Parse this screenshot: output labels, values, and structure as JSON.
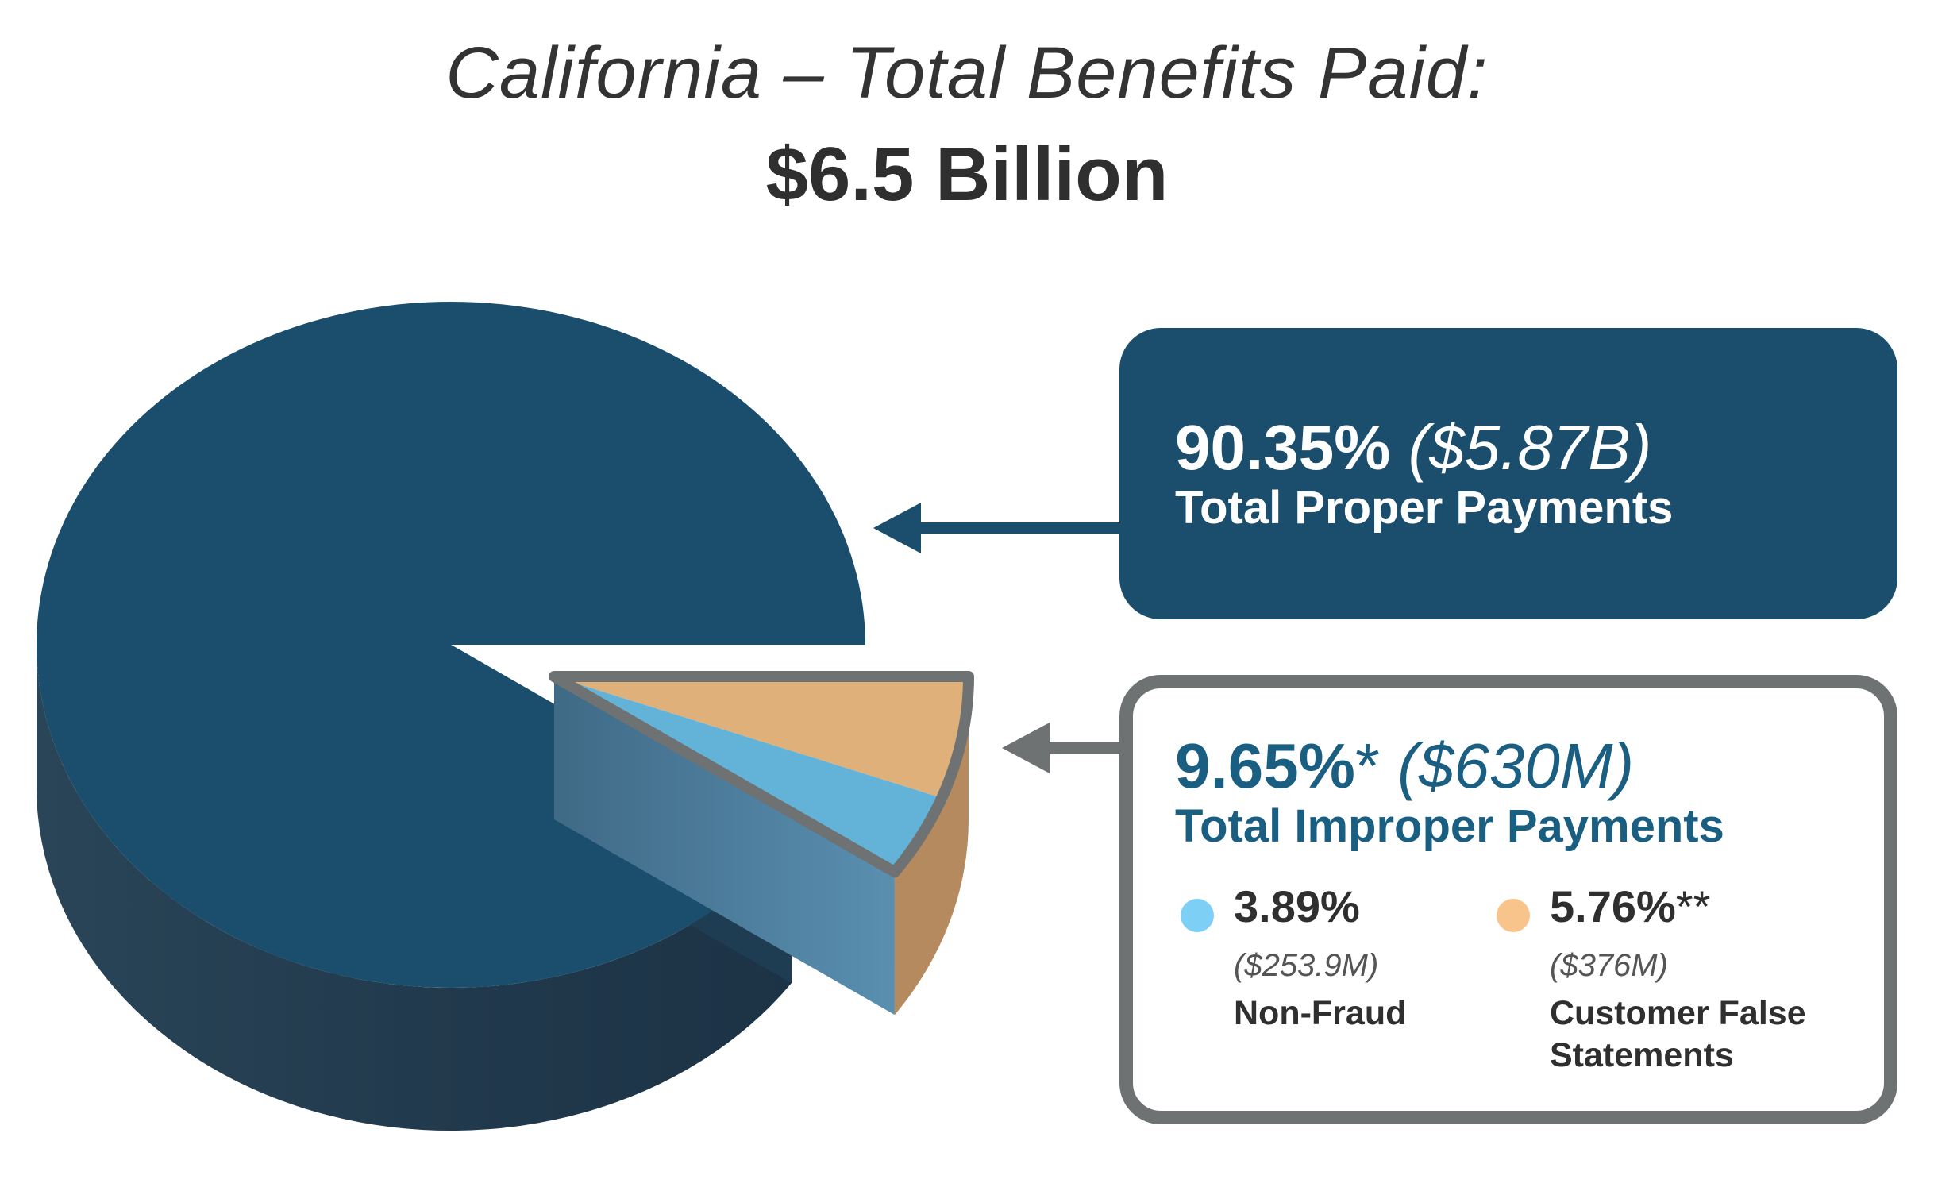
{
  "title": "California – Total Benefits Paid:",
  "subtitle": "$6.5 Billion",
  "colors": {
    "proper": "#1a4e6c",
    "non_fraud": "#63b3d9",
    "false_statements": "#dfb07a",
    "improper_border": "#6f7273",
    "non_fraud_dot": "#7dcff5",
    "false_statements_dot": "#f8c48c"
  },
  "proper": {
    "pct": "90.35%",
    "amount": "($5.87B)",
    "label": "Total Proper Payments"
  },
  "improper": {
    "pct": "9.65%",
    "star": "*",
    "amount": "($630M)",
    "label": "Total Improper Payments",
    "items": [
      {
        "pct": "3.89%",
        "star": "",
        "amount": "($253.9M)",
        "label_lines": [
          "Non-Fraud"
        ]
      },
      {
        "pct": "5.76%",
        "star": "**",
        "amount": "($376M)",
        "label_lines": [
          "Customer False",
          "Statements"
        ]
      }
    ]
  },
  "chart_data": {
    "type": "pie",
    "title": "California – Total Benefits Paid:",
    "subtitle": "$6.5 Billion",
    "slices": [
      {
        "label": "Total Proper Payments",
        "percent": 90.35,
        "amount": "$5.87B"
      },
      {
        "label": "Non-Fraud",
        "percent": 3.89,
        "amount": "$253.9M"
      },
      {
        "label": "Customer False Statements",
        "percent": 5.76,
        "amount": "$376M"
      }
    ]
  }
}
